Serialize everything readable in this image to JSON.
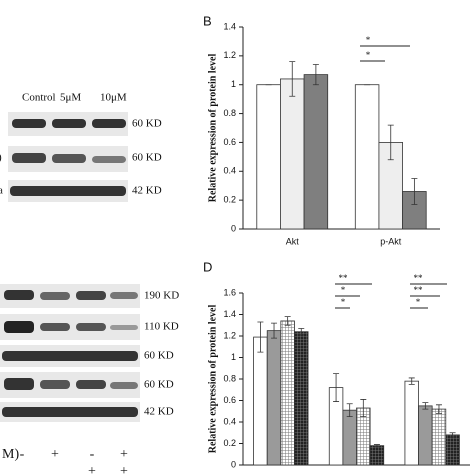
{
  "chart_data": [
    {
      "type": "bar",
      "panel": "B",
      "ylabel": "Relative expression of protein level",
      "categories": [
        "Akt",
        "p-Akt"
      ],
      "series": [
        {
          "color": "#ffffff",
          "values": [
            1,
            1
          ],
          "errors": [
            0,
            0
          ]
        },
        {
          "color": "#eeeeee",
          "values": [
            1.04,
            0.6
          ],
          "errors": [
            0.12,
            0.12
          ]
        },
        {
          "color": "#7f7f7f",
          "values": [
            1.07,
            0.26
          ],
          "errors": [
            0.07,
            0.09
          ]
        }
      ],
      "ylim": [
        0,
        1.4
      ],
      "yticks": [
        0,
        0.2,
        0.4,
        0.6,
        0.8,
        1,
        1.2,
        1.4
      ],
      "annotations": [
        "*",
        "*"
      ]
    },
    {
      "type": "bar",
      "panel": "D",
      "ylabel": "Relative expression of protein level",
      "categories": [
        null,
        null,
        null
      ],
      "series": [
        {
          "color": "#ffffff",
          "values": [
            1.19,
            0.72,
            0.78
          ],
          "errors": [
            0.14,
            0.13,
            0.03
          ]
        },
        {
          "color": "#9a9a9a",
          "values": [
            1.25,
            0.51,
            0.55
          ],
          "errors": [
            0.07,
            0.06,
            0.03
          ]
        },
        {
          "color": "#e0e0e0",
          "pattern": "grid",
          "values": [
            1.34,
            0.53,
            0.52
          ],
          "errors": [
            0.04,
            0.08,
            0.04
          ]
        },
        {
          "color": "#333333",
          "pattern": "grid",
          "values": [
            1.24,
            0.18,
            0.28
          ],
          "errors": [
            0.03,
            0.01,
            0.02
          ]
        }
      ],
      "ylim": [
        0,
        1.6
      ],
      "yticks": [
        0,
        0.2,
        0.4,
        0.6,
        0.8,
        1,
        1.2,
        1.4,
        1.6
      ],
      "annotations": [
        "**",
        "*",
        "*",
        "**",
        "**",
        "*"
      ]
    }
  ],
  "blots": {
    "top": {
      "header": [
        "Control",
        "5μM",
        "10μM"
      ],
      "labels": [
        "60 KD",
        "60 KD",
        "42 KD"
      ],
      "edge": [
        ")",
        "a"
      ]
    },
    "bottom": {
      "labels": [
        "190 KD",
        "110 KD",
        "60 KD",
        "60 KD",
        "42 KD"
      ],
      "signs": [
        "M)",
        "-",
        "+",
        "-",
        "+"
      ],
      "signs2": [
        "+",
        "+"
      ]
    }
  }
}
